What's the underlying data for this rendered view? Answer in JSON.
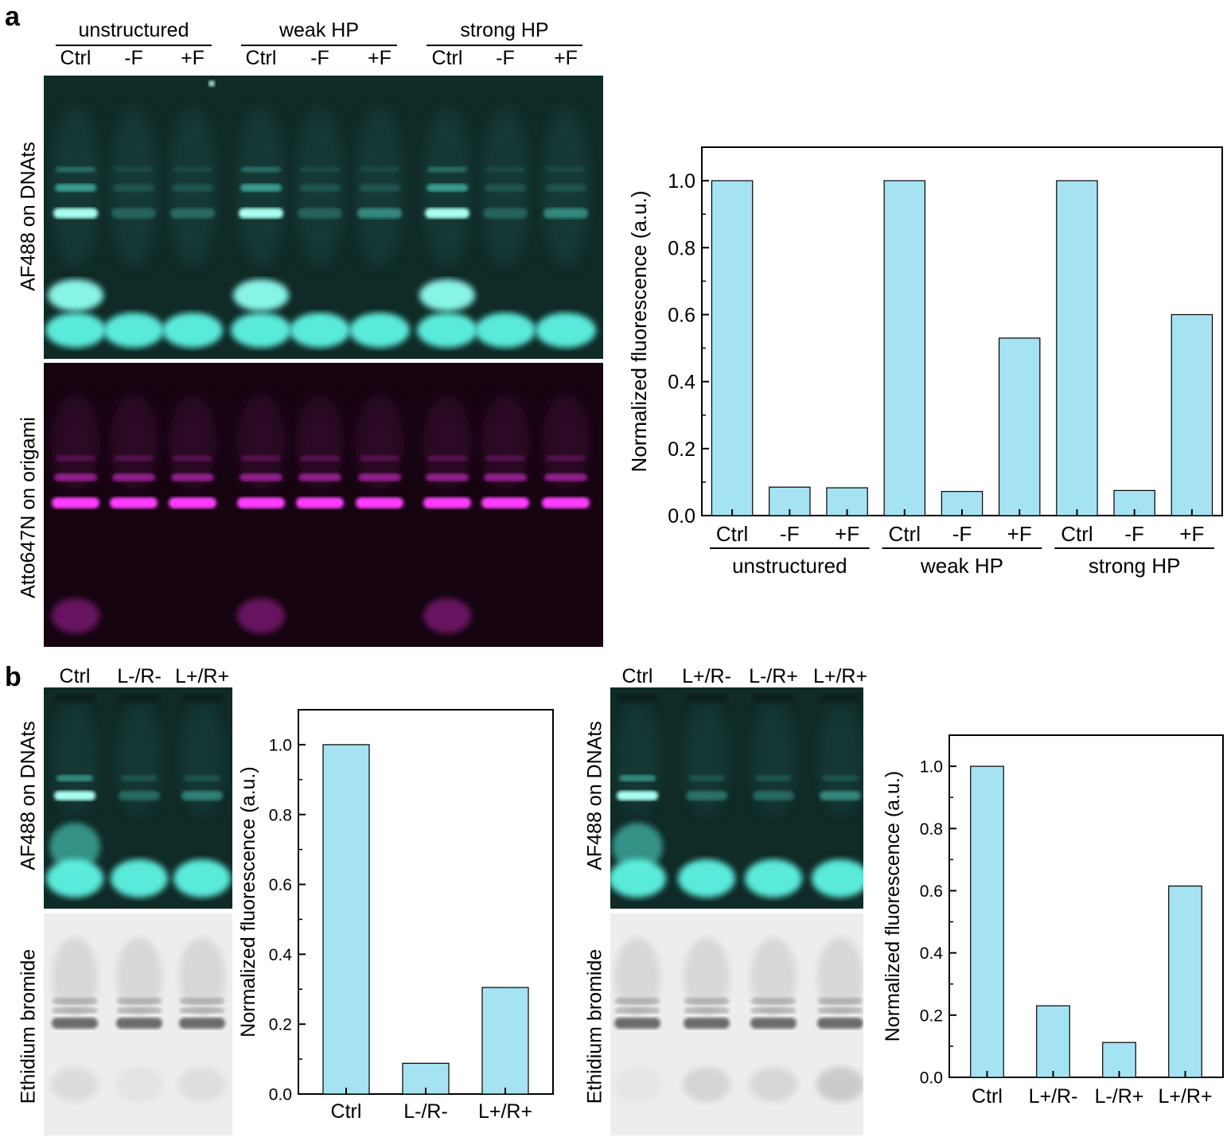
{
  "panel_a": {
    "label": "a",
    "groups": [
      "unstructured",
      "weak HP",
      "strong HP"
    ],
    "lanes": [
      "Ctrl",
      "-F",
      "+F",
      "Ctrl",
      "-F",
      "+F",
      "Ctrl",
      "-F",
      "+F"
    ],
    "gel_top_label": "AF488 on DNAts",
    "gel_bottom_label": "Atto647N on origami",
    "colors": {
      "cyan_gel": "#0f2a27",
      "magenta_gel": "#1a0514",
      "band_cyan": "#7fffee",
      "band_magenta": "#ff33ff",
      "bar": "#a6e3f2"
    }
  },
  "panel_b": {
    "label": "b",
    "left_lanes": [
      "Ctrl",
      "L-/R-",
      "L+/R+"
    ],
    "right_lanes": [
      "Ctrl",
      "L+/R-",
      "L-/R+",
      "L+/R+"
    ],
    "gel_top_label": "AF488 on DNAts",
    "gel_bottom_label": "Ethidium bromide"
  },
  "chart_data": [
    {
      "type": "bar",
      "id": "a",
      "categories": [
        "Ctrl",
        "-F",
        "+F",
        "Ctrl",
        "-F",
        "+F",
        "Ctrl",
        "-F",
        "+F"
      ],
      "groups": [
        "unstructured",
        "weak HP",
        "strong HP"
      ],
      "values": [
        1.0,
        0.085,
        0.083,
        1.0,
        0.072,
        0.53,
        1.0,
        0.075,
        0.6
      ],
      "ylabel": "Normalized fluorescence (a.u.)",
      "ylim": [
        0,
        1.1
      ],
      "yticks": [
        "0.0",
        "0.2",
        "0.4",
        "0.6",
        "0.8",
        "1.0"
      ],
      "bar_color": "#a6e3f2"
    },
    {
      "type": "bar",
      "id": "b-left",
      "categories": [
        "Ctrl",
        "L-/R-",
        "L+/R+"
      ],
      "values": [
        1.0,
        0.088,
        0.305
      ],
      "ylabel": "Normalized fluorescence (a.u.)",
      "ylim": [
        0,
        1.1
      ],
      "yticks": [
        "0.0",
        "0.2",
        "0.4",
        "0.6",
        "0.8",
        "1.0"
      ],
      "bar_color": "#a6e3f2"
    },
    {
      "type": "bar",
      "id": "b-right",
      "categories": [
        "Ctrl",
        "L+/R-",
        "L-/R+",
        "L+/R+"
      ],
      "values": [
        1.0,
        0.23,
        0.112,
        0.615
      ],
      "ylabel": "Normalized fluorescence (a.u.)",
      "ylim": [
        0,
        1.1
      ],
      "yticks": [
        "0.0",
        "0.2",
        "0.4",
        "0.6",
        "0.8",
        "1.0"
      ],
      "bar_color": "#a6e3f2"
    }
  ]
}
